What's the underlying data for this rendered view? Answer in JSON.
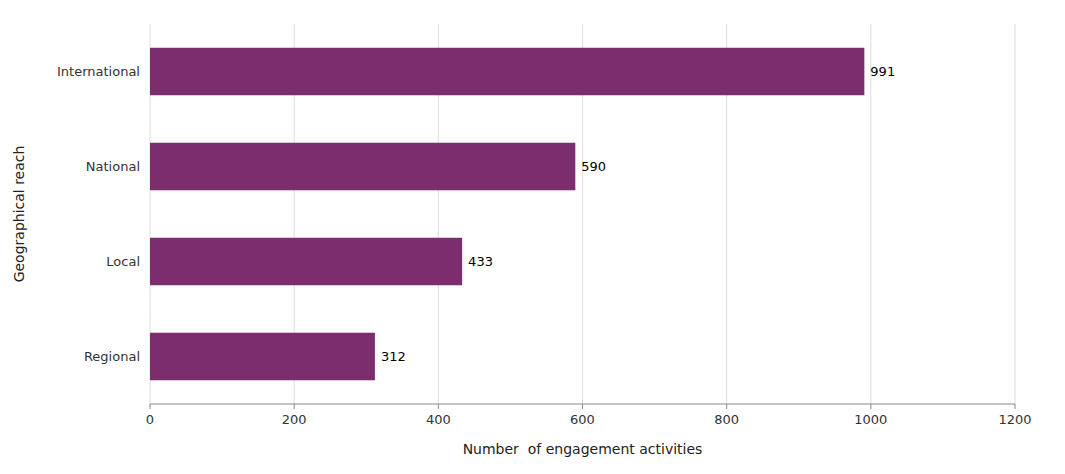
{
  "chart_data": {
    "type": "bar",
    "orientation": "horizontal",
    "categories": [
      "International",
      "National",
      "Local",
      "Regional"
    ],
    "values": [
      991,
      590,
      433,
      312
    ],
    "color": "#7B2D6E",
    "xlabel": "Number  of engagement activities",
    "ylabel": "Geographical reach",
    "xlim": [
      0,
      1200
    ],
    "xticks": [
      0,
      200,
      400,
      600,
      800,
      1000,
      1200
    ],
    "grid": true,
    "data_labels": true
  }
}
